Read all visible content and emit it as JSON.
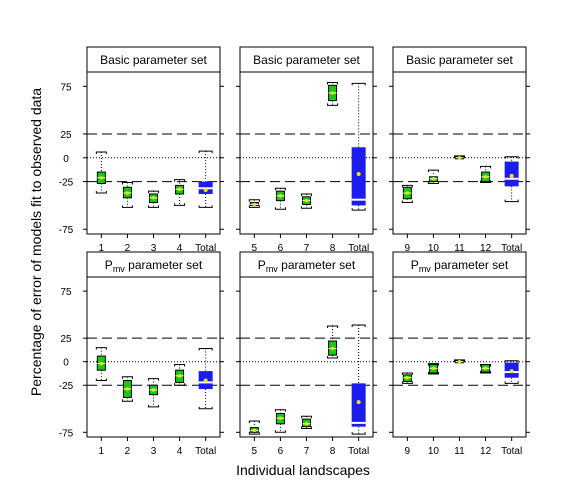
{
  "figure": {
    "ylabel": "Percentage of error of models fit to observed data",
    "xlabel": "Individual landscapes",
    "ylim": [
      -80,
      90
    ],
    "yticks": [
      75,
      25,
      0,
      -25,
      -75
    ],
    "yticklabels": [
      "75",
      "25",
      "0",
      "-25",
      "-75"
    ],
    "dashed_lines": [
      25,
      -25
    ],
    "dotted_lines": [
      0
    ]
  },
  "colors": {
    "box_fill": "#18c818",
    "total_fill": "#1c1cf0",
    "mean_marker": "#f0e600",
    "dashed": "#000000",
    "dotted": "#000000"
  },
  "chart_data": [
    {
      "type": "box",
      "title": "Basic parameter set",
      "categories": [
        "1",
        "2",
        "3",
        "4",
        "Total"
      ],
      "series": [
        {
          "cat": "1",
          "q1": -27,
          "q3": -15,
          "median": -21,
          "mean": -21,
          "whisker_low": -37,
          "whisker_high": 6
        },
        {
          "cat": "2",
          "q1": -42,
          "q3": -31,
          "median": -37,
          "mean": -37,
          "whisker_low": -52,
          "whisker_high": -26
        },
        {
          "cat": "3",
          "q1": -47,
          "q3": -38,
          "median": -42,
          "mean": -42,
          "whisker_low": -52,
          "whisker_high": -35
        },
        {
          "cat": "4",
          "q1": -38,
          "q3": -29,
          "median": -33,
          "mean": -33,
          "whisker_low": -50,
          "whisker_high": -23
        },
        {
          "cat": "Total",
          "q1": -38,
          "q3": -25,
          "median": -32,
          "mean": -34,
          "whisker_low": -52,
          "whisker_high": 7,
          "total": true
        }
      ]
    },
    {
      "type": "box",
      "title": "Basic parameter set",
      "categories": [
        "5",
        "6",
        "7",
        "8",
        "Total"
      ],
      "series": [
        {
          "cat": "5",
          "q1": -50,
          "q3": -47,
          "median": -49,
          "mean": -49,
          "whisker_low": -52,
          "whisker_high": -44
        },
        {
          "cat": "6",
          "q1": -45,
          "q3": -35,
          "median": -40,
          "mean": -40,
          "whisker_low": -54,
          "whisker_high": -32
        },
        {
          "cat": "7",
          "q1": -49,
          "q3": -41,
          "median": -45,
          "mean": -45,
          "whisker_low": -53,
          "whisker_high": -38
        },
        {
          "cat": "8",
          "q1": 60,
          "q3": 76,
          "median": 68,
          "mean": 68,
          "whisker_low": 55,
          "whisker_high": 79
        },
        {
          "cat": "Total",
          "q1": -50,
          "q3": 11,
          "median": -44,
          "mean": -17,
          "whisker_low": -55,
          "whisker_high": 78,
          "total": true
        }
      ]
    },
    {
      "type": "box",
      "title": "Basic parameter set",
      "categories": [
        "9",
        "10",
        "11",
        "12",
        "Total"
      ],
      "series": [
        {
          "cat": "9",
          "q1": -43,
          "q3": -31,
          "median": -37,
          "mean": -37,
          "whisker_low": -47,
          "whisker_high": -29
        },
        {
          "cat": "10",
          "q1": -25,
          "q3": -20,
          "median": -22,
          "mean": -22,
          "whisker_low": -27,
          "whisker_high": -13
        },
        {
          "cat": "11",
          "q1": 0,
          "q3": 1,
          "median": 0,
          "mean": 0,
          "whisker_low": 0,
          "whisker_high": 2
        },
        {
          "cat": "12",
          "q1": -25,
          "q3": -15,
          "median": -20,
          "mean": -20,
          "whisker_low": -26,
          "whisker_high": -9
        },
        {
          "cat": "Total",
          "q1": -30,
          "q3": -4,
          "median": -22,
          "mean": -19,
          "whisker_low": -46,
          "whisker_high": 1,
          "total": true
        }
      ]
    },
    {
      "type": "box",
      "title": "Pmv parameter set",
      "title_main": "P",
      "title_sub": "mv",
      "title_rest": " parameter set",
      "categories": [
        "1",
        "2",
        "3",
        "4",
        "Total"
      ],
      "series": [
        {
          "cat": "1",
          "q1": -9,
          "q3": 6,
          "median": -2,
          "mean": -2,
          "whisker_low": -20,
          "whisker_high": 15
        },
        {
          "cat": "2",
          "q1": -38,
          "q3": -20,
          "median": -29,
          "mean": -29,
          "whisker_low": -42,
          "whisker_high": -16
        },
        {
          "cat": "3",
          "q1": -35,
          "q3": -25,
          "median": -30,
          "mean": -30,
          "whisker_low": -48,
          "whisker_high": -18
        },
        {
          "cat": "4",
          "q1": -22,
          "q3": -9,
          "median": -15,
          "mean": -15,
          "whisker_low": -25,
          "whisker_high": -3
        },
        {
          "cat": "Total",
          "q1": -29,
          "q3": -10,
          "median": -22,
          "mean": -20,
          "whisker_low": -50,
          "whisker_high": 14,
          "total": true
        }
      ]
    },
    {
      "type": "box",
      "title": "Pmv parameter set",
      "title_main": "P",
      "title_sub": "mv",
      "title_rest": " parameter set",
      "categories": [
        "5",
        "6",
        "7",
        "8",
        "Total"
      ],
      "series": [
        {
          "cat": "5",
          "q1": -75,
          "q3": -70,
          "median": -73,
          "mean": -73,
          "whisker_low": -77,
          "whisker_high": -63
        },
        {
          "cat": "6",
          "q1": -66,
          "q3": -55,
          "median": -60,
          "mean": -60,
          "whisker_low": -75,
          "whisker_high": -51
        },
        {
          "cat": "7",
          "q1": -69,
          "q3": -61,
          "median": -66,
          "mean": -66,
          "whisker_low": -71,
          "whisker_high": -58
        },
        {
          "cat": "8",
          "q1": 7,
          "q3": 22,
          "median": 14,
          "mean": 14,
          "whisker_low": 4,
          "whisker_high": 38
        },
        {
          "cat": "Total",
          "q1": -69,
          "q3": -23,
          "median": -65,
          "mean": -43,
          "whisker_low": -77,
          "whisker_high": 39,
          "total": true
        }
      ]
    },
    {
      "type": "box",
      "title": "Pmv parameter set",
      "title_main": "P",
      "title_sub": "mv",
      "title_rest": " parameter set",
      "categories": [
        "9",
        "10",
        "11",
        "12",
        "Total"
      ],
      "series": [
        {
          "cat": "9",
          "q1": -21,
          "q3": -14,
          "median": -17,
          "mean": -17,
          "whisker_low": -23,
          "whisker_high": -12
        },
        {
          "cat": "10",
          "q1": -12,
          "q3": -3,
          "median": -7,
          "mean": -7,
          "whisker_low": -13,
          "whisker_high": -2
        },
        {
          "cat": "11",
          "q1": 0,
          "q3": 1,
          "median": 0,
          "mean": 0,
          "whisker_low": 0,
          "whisker_high": 2
        },
        {
          "cat": "12",
          "q1": -11,
          "q3": -3,
          "median": -7,
          "mean": -7,
          "whisker_low": -12,
          "whisker_high": -3
        },
        {
          "cat": "Total",
          "q1": -17,
          "q3": -1,
          "median": -11,
          "mean": -10,
          "whisker_low": -23,
          "whisker_high": 1,
          "total": true
        }
      ]
    }
  ]
}
